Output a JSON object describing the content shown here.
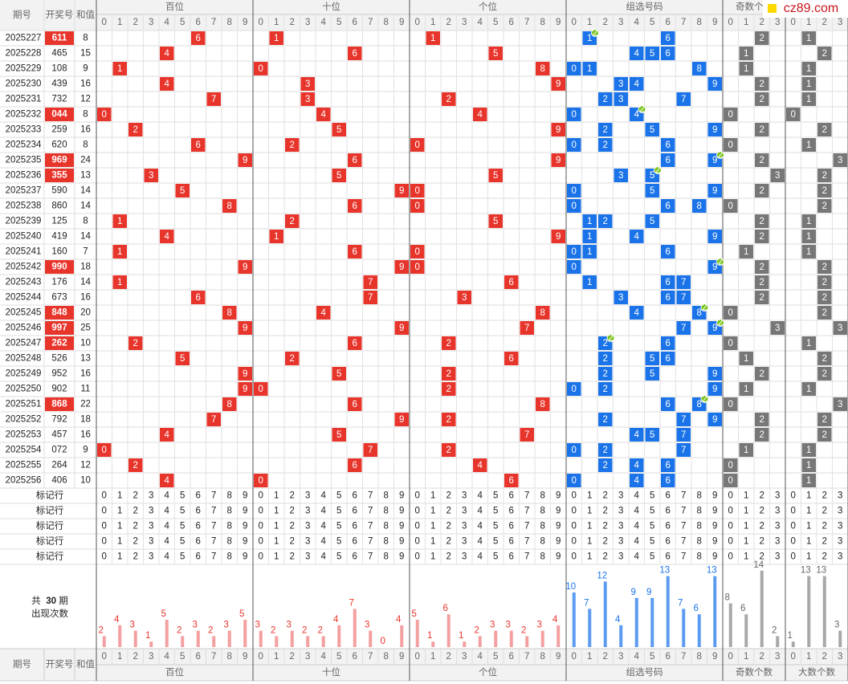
{
  "header": {
    "period": "期号",
    "number": "开奖号",
    "sum": "和值"
  },
  "groups": [
    {
      "name": "百位",
      "digits": [
        0,
        1,
        2,
        3,
        4,
        5,
        6,
        7,
        8,
        9
      ]
    },
    {
      "name": "十位",
      "digits": [
        0,
        1,
        2,
        3,
        4,
        5,
        6,
        7,
        8,
        9
      ]
    },
    {
      "name": "个位",
      "digits": [
        0,
        1,
        2,
        3,
        4,
        5,
        6,
        7,
        8,
        9
      ]
    },
    {
      "name": "组选号码",
      "digits": [
        0,
        1,
        2,
        3,
        4,
        5,
        6,
        7,
        8,
        9
      ]
    },
    {
      "name": "奇数个数",
      "digits": [
        0,
        1,
        2,
        3
      ]
    },
    {
      "name": "大数个数",
      "digits": [
        0,
        1,
        2,
        3
      ]
    }
  ],
  "draws": [
    {
      "period": "2025227",
      "number": "611",
      "sum": 8,
      "digits": [
        6,
        1,
        1
      ],
      "odd": 2,
      "big": 1
    },
    {
      "period": "2025228",
      "number": "465",
      "sum": 15,
      "digits": [
        4,
        6,
        5
      ],
      "odd": 1,
      "big": 2
    },
    {
      "period": "2025229",
      "number": "108",
      "sum": 9,
      "digits": [
        1,
        0,
        8
      ],
      "odd": 1,
      "big": 1
    },
    {
      "period": "2025230",
      "number": "439",
      "sum": 16,
      "digits": [
        4,
        3,
        9
      ],
      "odd": 2,
      "big": 1
    },
    {
      "period": "2025231",
      "number": "732",
      "sum": 12,
      "digits": [
        7,
        3,
        2
      ],
      "odd": 2,
      "big": 1
    },
    {
      "period": "2025232",
      "number": "044",
      "sum": 8,
      "digits": [
        0,
        4,
        4
      ],
      "odd": 0,
      "big": 0
    },
    {
      "period": "2025233",
      "number": "259",
      "sum": 16,
      "digits": [
        2,
        5,
        9
      ],
      "odd": 2,
      "big": 2
    },
    {
      "period": "2025234",
      "number": "620",
      "sum": 8,
      "digits": [
        6,
        2,
        0
      ],
      "odd": 0,
      "big": 1
    },
    {
      "period": "2025235",
      "number": "969",
      "sum": 24,
      "digits": [
        9,
        6,
        9
      ],
      "odd": 2,
      "big": 3
    },
    {
      "period": "2025236",
      "number": "355",
      "sum": 13,
      "digits": [
        3,
        5,
        5
      ],
      "odd": 3,
      "big": 2
    },
    {
      "period": "2025237",
      "number": "590",
      "sum": 14,
      "digits": [
        5,
        9,
        0
      ],
      "odd": 2,
      "big": 2
    },
    {
      "period": "2025238",
      "number": "860",
      "sum": 14,
      "digits": [
        8,
        6,
        0
      ],
      "odd": 0,
      "big": 2
    },
    {
      "period": "2025239",
      "number": "125",
      "sum": 8,
      "digits": [
        1,
        2,
        5
      ],
      "odd": 2,
      "big": 1
    },
    {
      "period": "2025240",
      "number": "419",
      "sum": 14,
      "digits": [
        4,
        1,
        9
      ],
      "odd": 2,
      "big": 1
    },
    {
      "period": "2025241",
      "number": "160",
      "sum": 7,
      "digits": [
        1,
        6,
        0
      ],
      "odd": 1,
      "big": 1
    },
    {
      "period": "2025242",
      "number": "990",
      "sum": 18,
      "digits": [
        9,
        9,
        0
      ],
      "odd": 2,
      "big": 2
    },
    {
      "period": "2025243",
      "number": "176",
      "sum": 14,
      "digits": [
        1,
        7,
        6
      ],
      "odd": 2,
      "big": 2
    },
    {
      "period": "2025244",
      "number": "673",
      "sum": 16,
      "digits": [
        6,
        7,
        3
      ],
      "odd": 2,
      "big": 2
    },
    {
      "period": "2025245",
      "number": "848",
      "sum": 20,
      "digits": [
        8,
        4,
        8
      ],
      "odd": 0,
      "big": 2
    },
    {
      "period": "2025246",
      "number": "997",
      "sum": 25,
      "digits": [
        9,
        9,
        7
      ],
      "odd": 3,
      "big": 3
    },
    {
      "period": "2025247",
      "number": "262",
      "sum": 10,
      "digits": [
        2,
        6,
        2
      ],
      "odd": 0,
      "big": 1
    },
    {
      "period": "2025248",
      "number": "526",
      "sum": 13,
      "digits": [
        5,
        2,
        6
      ],
      "odd": 1,
      "big": 2
    },
    {
      "period": "2025249",
      "number": "952",
      "sum": 16,
      "digits": [
        9,
        5,
        2
      ],
      "odd": 2,
      "big": 2
    },
    {
      "period": "2025250",
      "number": "902",
      "sum": 11,
      "digits": [
        9,
        0,
        2
      ],
      "odd": 1,
      "big": 1
    },
    {
      "period": "2025251",
      "number": "868",
      "sum": 22,
      "digits": [
        8,
        6,
        8
      ],
      "odd": 0,
      "big": 3
    },
    {
      "period": "2025252",
      "number": "792",
      "sum": 18,
      "digits": [
        7,
        9,
        2
      ],
      "odd": 2,
      "big": 2
    },
    {
      "period": "2025253",
      "number": "457",
      "sum": 16,
      "digits": [
        4,
        5,
        7
      ],
      "odd": 2,
      "big": 2
    },
    {
      "period": "2025254",
      "number": "072",
      "sum": 9,
      "digits": [
        0,
        7,
        2
      ],
      "odd": 1,
      "big": 1
    },
    {
      "period": "2025255",
      "number": "264",
      "sum": 12,
      "digits": [
        2,
        6,
        4
      ],
      "odd": 0,
      "big": 1
    },
    {
      "period": "2025256",
      "number": "406",
      "sum": 10,
      "digits": [
        4,
        0,
        6
      ],
      "odd": 0,
      "big": 1
    }
  ],
  "marker_rows": [
    "标记行",
    "标记行",
    "标记行",
    "标记行",
    "标记行"
  ],
  "stats": {
    "prefix": "共",
    "periods": 30,
    "suffix": "期",
    "label": "出现次数",
    "counts": [
      [
        2,
        4,
        3,
        1,
        5,
        2,
        3,
        2,
        3,
        5
      ],
      [
        3,
        2,
        3,
        2,
        2,
        4,
        7,
        3,
        0,
        4
      ],
      [
        5,
        1,
        6,
        1,
        2,
        3,
        3,
        2,
        3,
        4
      ],
      [
        10,
        7,
        12,
        4,
        9,
        9,
        13,
        7,
        6,
        13
      ],
      [
        8,
        6,
        14,
        2
      ],
      [
        1,
        13,
        13,
        3
      ]
    ]
  },
  "pair_badge": "2",
  "logo": "cz89.com"
}
